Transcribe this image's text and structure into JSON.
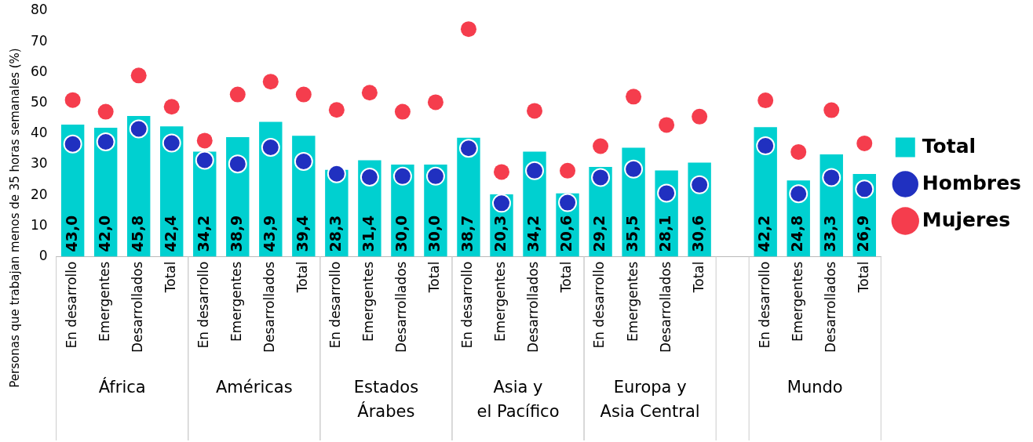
{
  "chart_data": {
    "type": "bar",
    "ylabel": "Personas que trabajan menos de 35 horas semanales (%)",
    "categories": [
      "En desarrollo",
      "Emergentes",
      "Desarrollados",
      "Total",
      "En desarrollo",
      "Emergentes",
      "Desarrollados",
      "Total",
      "En desarrollo",
      "Emergentes",
      "Desarrollados",
      "Total",
      "En desarrollo",
      "Emergentes",
      "Desarrollados",
      "Total",
      "En desarrollo",
      "Emergentes",
      "Desarrollados",
      "Total",
      null,
      "En desarrollo",
      "Emergentes",
      "Desarrollados",
      "Total"
    ],
    "series": [
      {
        "name": "Total",
        "color": "#00d0d0",
        "values": [
          43.0,
          42.0,
          45.8,
          42.4,
          34.2,
          38.9,
          43.9,
          39.4,
          28.3,
          31.4,
          30.0,
          30.0,
          38.7,
          20.3,
          34.2,
          20.6,
          29.2,
          35.5,
          28.1,
          30.6,
          null,
          42.2,
          24.8,
          33.3,
          26.9
        ],
        "value_labels": [
          "43,0",
          "42,0",
          "45,8",
          "42,4",
          "34,2",
          "38,9",
          "43,9",
          "39,4",
          "28,3",
          "31,4",
          "30,0",
          "30,0",
          "38,7",
          "20,3",
          "34,2",
          "20,6",
          "29,2",
          "35,5",
          "28,1",
          "30,6",
          null,
          "42,2",
          "24,8",
          "33,3",
          "26,9"
        ]
      },
      {
        "name": "Hombres",
        "type": "scatter",
        "color": "#2030c0",
        "values": [
          36.7,
          37.4,
          41.6,
          37.0,
          31.4,
          30.2,
          35.6,
          31.0,
          27.0,
          25.9,
          26.2,
          26.2,
          35.3,
          17.4,
          28.0,
          17.6,
          25.8,
          28.5,
          20.7,
          23.4,
          null,
          36.1,
          20.5,
          25.8,
          22.0
        ]
      },
      {
        "name": "Mujeres",
        "type": "scatter",
        "color": "#f53d4d",
        "values": [
          51.0,
          47.2,
          59.0,
          48.8,
          37.8,
          52.8,
          57.0,
          52.8,
          47.8,
          53.4,
          47.2,
          50.3,
          74.1,
          27.6,
          47.5,
          28.0,
          36.0,
          52.1,
          42.9,
          45.6,
          null,
          50.9,
          34.1,
          47.7,
          36.9
        ]
      }
    ],
    "ylim": [
      0,
      80
    ],
    "yticks": [
      0,
      10,
      20,
      30,
      40,
      50,
      60,
      70,
      80
    ],
    "grid": false,
    "legend": "right",
    "marker": "circle",
    "annotations": [
      "África",
      "Américas",
      "Estados\nÁrabes",
      "Asia y\nel Pacífico",
      "Europa y\nAsia Central",
      "Mundo"
    ]
  }
}
